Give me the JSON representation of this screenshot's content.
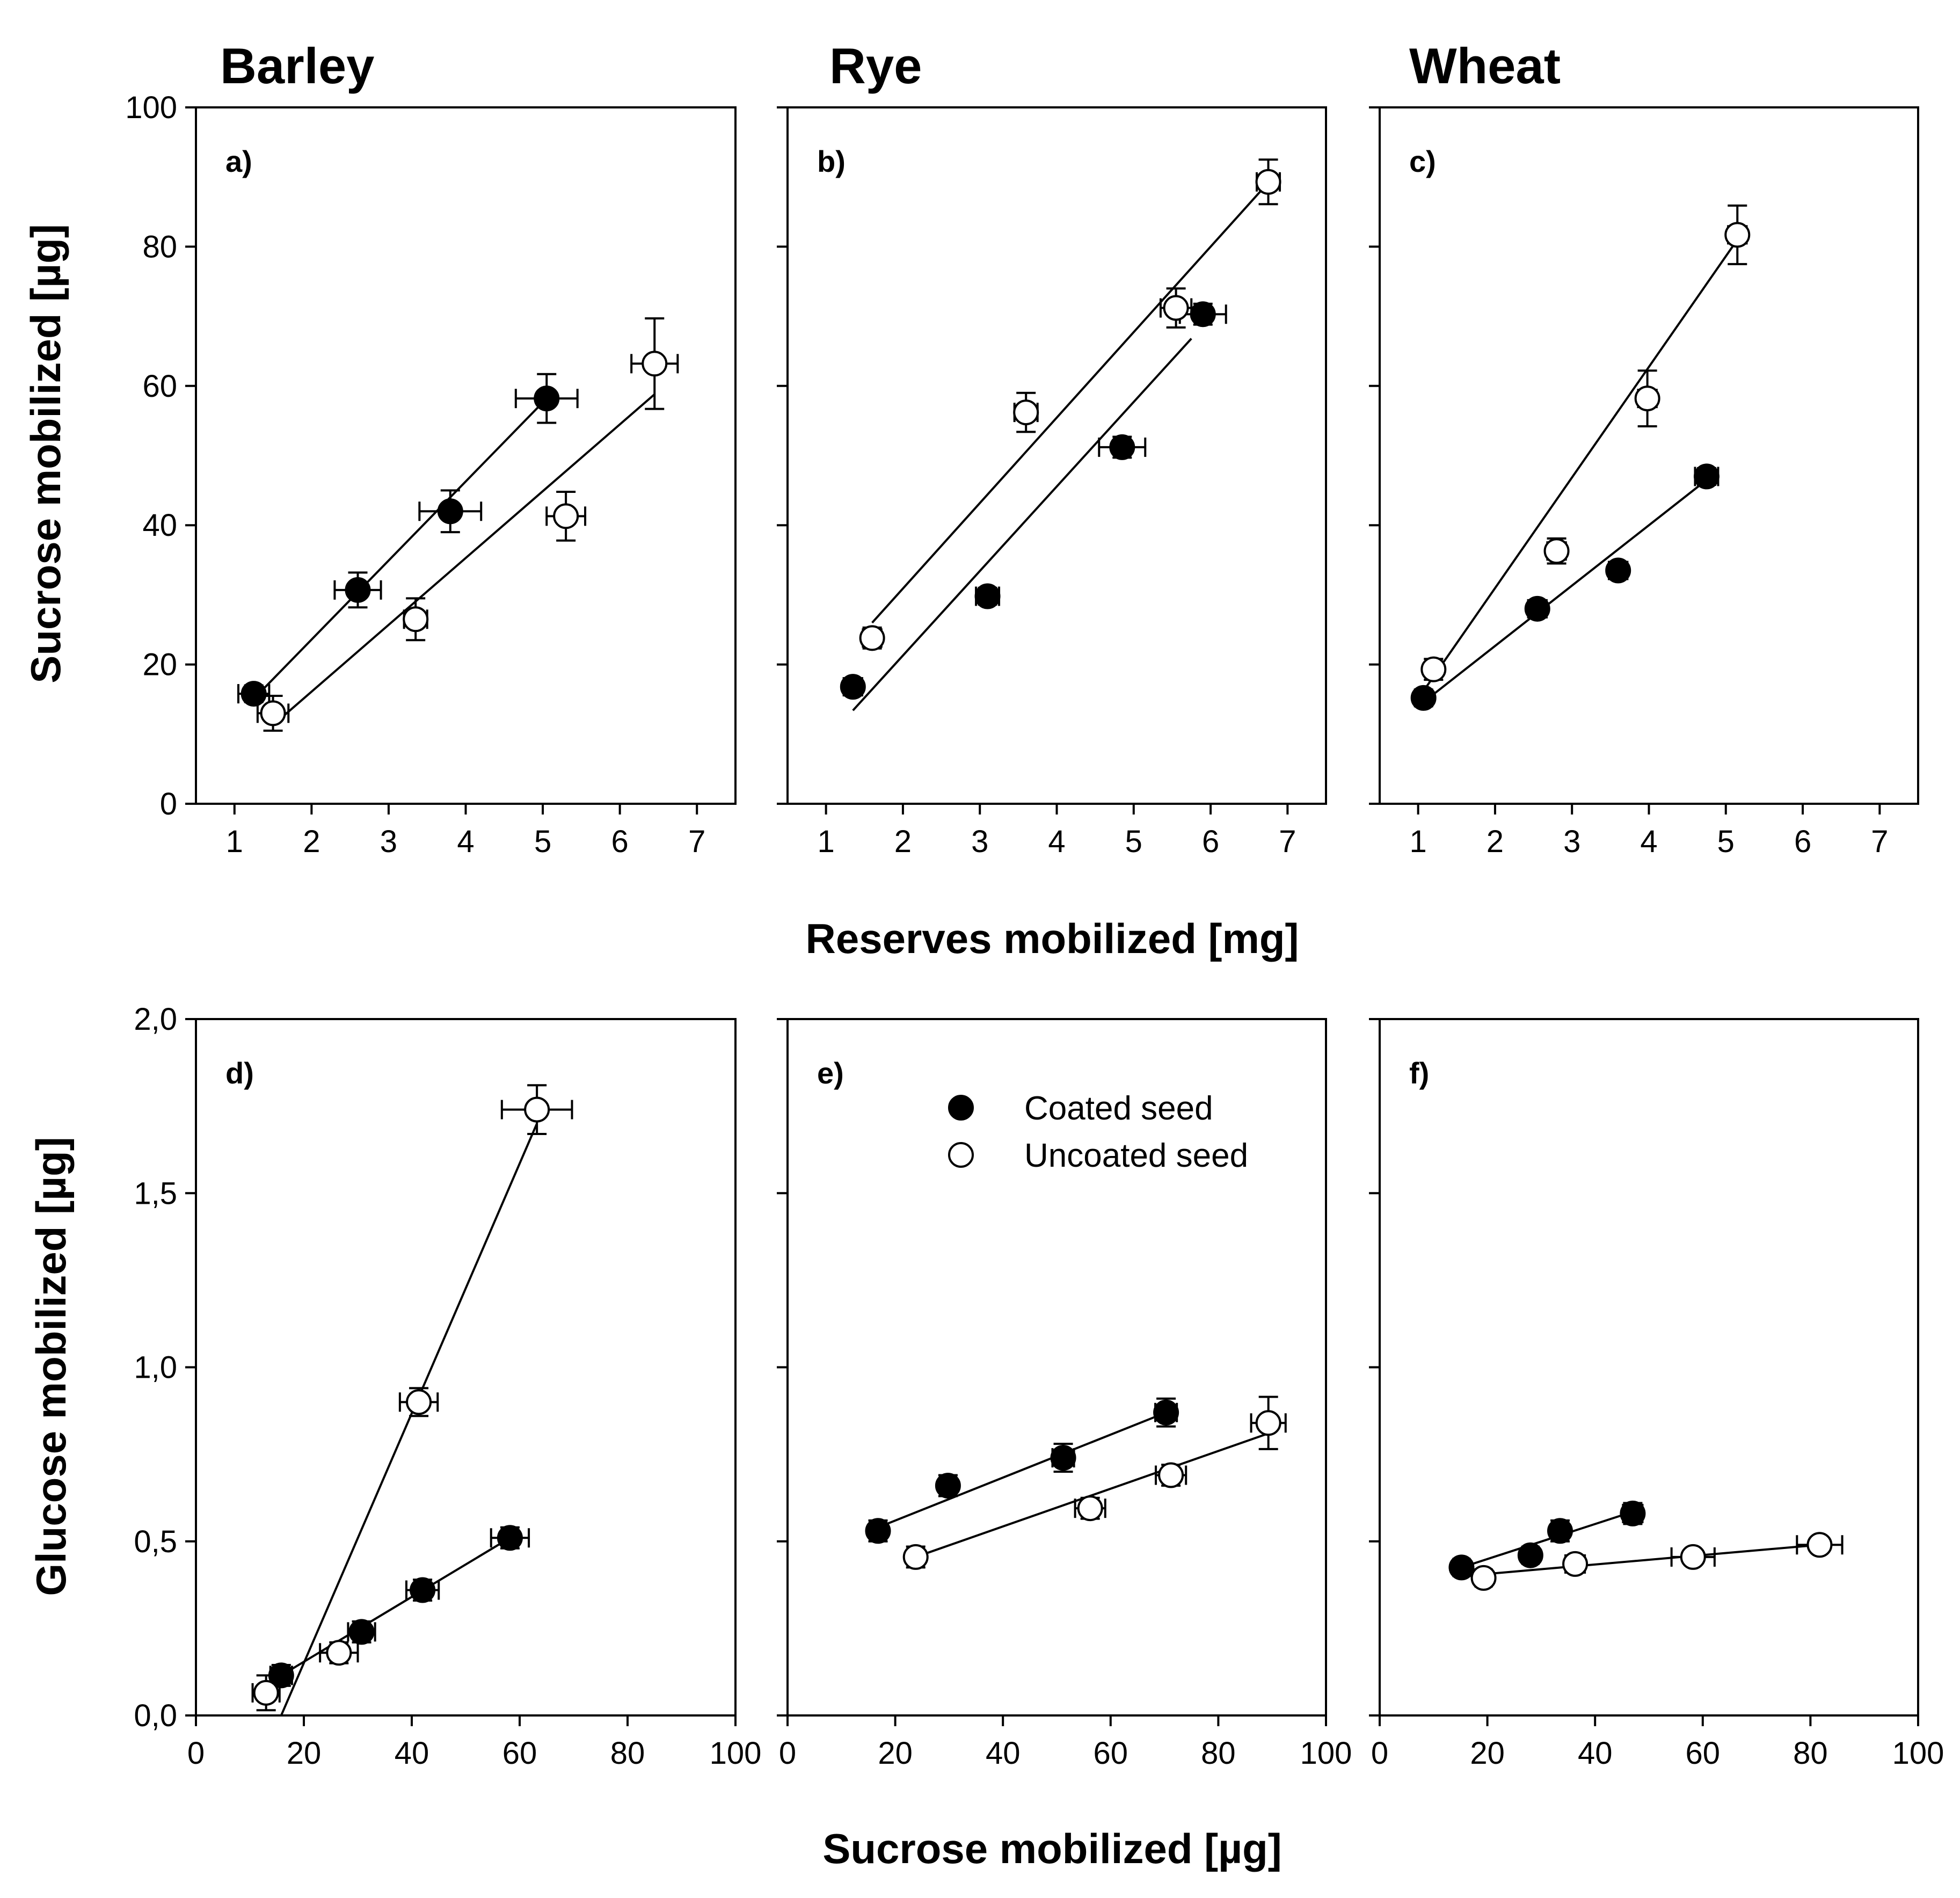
{
  "legend": {
    "coated": "Coated seed",
    "uncoated": "Uncoated seed"
  },
  "crops": [
    "Barley",
    "Rye",
    "Wheat"
  ],
  "xlabel_top": "Reserves mobilized [mg]",
  "xlabel_bottom": "Sucrose mobilized [µg]",
  "ylabel_top": "Sucrose mobilized [µg]",
  "ylabel_bottom": "Glucose mobilized [µg]",
  "chart_data": [
    {
      "type": "scatter",
      "panel": "a)",
      "crop": "Barley",
      "xlabel": "Reserves mobilized [mg]",
      "ylabel": "Sucrose mobilized [µg]",
      "xlim": [
        0.5,
        7.5
      ],
      "ylim": [
        0,
        100
      ],
      "xticks": [
        "1",
        "2",
        "3",
        "4",
        "5",
        "6",
        "7"
      ],
      "yticks": [
        "0",
        "20",
        "40",
        "60",
        "80",
        "100"
      ],
      "series": [
        {
          "name": "Coated seed",
          "filled": true,
          "points": [
            {
              "x": 1.25,
              "y": 15.8,
              "xerr": 0.2,
              "yerr": 1.2
            },
            {
              "x": 2.6,
              "y": 30.7,
              "xerr": 0.3,
              "yerr": 2.5
            },
            {
              "x": 3.8,
              "y": 42.0,
              "xerr": 0.4,
              "yerr": 3.0
            },
            {
              "x": 5.05,
              "y": 58.2,
              "xerr": 0.4,
              "yerr": 3.5
            }
          ],
          "fit": [
            [
              1.2,
              14.5
            ],
            [
              5.05,
              58.2
            ]
          ]
        },
        {
          "name": "Uncoated seed",
          "filled": false,
          "points": [
            {
              "x": 1.5,
              "y": 13.0,
              "xerr": 0.2,
              "yerr": 2.5
            },
            {
              "x": 3.35,
              "y": 26.5,
              "xerr": 0.15,
              "yerr": 3.0
            },
            {
              "x": 5.3,
              "y": 41.3,
              "xerr": 0.25,
              "yerr": 3.5
            },
            {
              "x": 6.45,
              "y": 63.2,
              "xerr": 0.3,
              "yerr": 6.5
            }
          ],
          "fit": [
            [
              1.5,
              11.3
            ],
            [
              6.45,
              58.8
            ]
          ]
        }
      ]
    },
    {
      "type": "scatter",
      "panel": "b)",
      "crop": "Rye",
      "xlabel": "Reserves mobilized [mg]",
      "ylabel": "Sucrose mobilized [µg]",
      "xlim": [
        0.5,
        7.5
      ],
      "ylim": [
        0,
        100
      ],
      "xticks": [
        "1",
        "2",
        "3",
        "4",
        "5",
        "6",
        "7"
      ],
      "yticks": [
        "",
        "",
        "",
        "",
        "",
        ""
      ],
      "series": [
        {
          "name": "Coated seed",
          "filled": true,
          "points": [
            {
              "x": 1.35,
              "y": 16.8,
              "xerr": 0.12,
              "yerr": 1.2
            },
            {
              "x": 3.1,
              "y": 29.8,
              "xerr": 0.15,
              "yerr": 1.2
            },
            {
              "x": 4.85,
              "y": 51.2,
              "xerr": 0.3,
              "yerr": 1.5
            },
            {
              "x": 5.9,
              "y": 70.3,
              "xerr": 0.3,
              "yerr": 1.5
            }
          ],
          "fit": [
            [
              1.35,
              13.4
            ],
            [
              5.75,
              66.8
            ]
          ]
        },
        {
          "name": "Uncoated seed",
          "filled": false,
          "points": [
            {
              "x": 1.6,
              "y": 23.8,
              "xerr": 0.12,
              "yerr": 1.5
            },
            {
              "x": 3.6,
              "y": 56.2,
              "xerr": 0.15,
              "yerr": 2.8
            },
            {
              "x": 5.55,
              "y": 71.2,
              "xerr": 0.2,
              "yerr": 2.8
            },
            {
              "x": 6.75,
              "y": 89.3,
              "xerr": 0.15,
              "yerr": 3.2
            }
          ],
          "fit": [
            [
              1.6,
              26.0
            ],
            [
              6.75,
              89.2
            ]
          ]
        }
      ]
    },
    {
      "type": "scatter",
      "panel": "c)",
      "crop": "Wheat",
      "xlabel": "Reserves mobilized [mg]",
      "ylabel": "Sucrose mobilized [µg]",
      "xlim": [
        0.5,
        7.5
      ],
      "ylim": [
        0,
        100
      ],
      "xticks": [
        "1",
        "2",
        "3",
        "4",
        "5",
        "6",
        "7"
      ],
      "yticks": [
        "",
        "",
        "",
        "",
        "",
        ""
      ],
      "series": [
        {
          "name": "Coated seed",
          "filled": true,
          "points": [
            {
              "x": 1.07,
              "y": 15.2,
              "xerr": 0.1,
              "yerr": 1.2
            },
            {
              "x": 2.55,
              "y": 28.0,
              "xerr": 0.12,
              "yerr": 1.2
            },
            {
              "x": 3.6,
              "y": 33.5,
              "xerr": 0.12,
              "yerr": 1.2
            },
            {
              "x": 4.75,
              "y": 47.0,
              "xerr": 0.15,
              "yerr": 1.2
            }
          ],
          "fit": [
            [
              1.07,
              14.6
            ],
            [
              4.75,
              46.5
            ]
          ]
        },
        {
          "name": "Uncoated seed",
          "filled": false,
          "points": [
            {
              "x": 1.2,
              "y": 19.3,
              "xerr": 0.1,
              "yerr": 1.5
            },
            {
              "x": 2.8,
              "y": 36.3,
              "xerr": 0.12,
              "yerr": 1.8
            },
            {
              "x": 3.98,
              "y": 58.2,
              "xerr": 0.12,
              "yerr": 4.0
            },
            {
              "x": 5.15,
              "y": 81.7,
              "xerr": 0.12,
              "yerr": 4.2
            }
          ],
          "fit": [
            [
              1.07,
              16.2
            ],
            [
              5.15,
              81.0
            ]
          ]
        }
      ]
    },
    {
      "type": "scatter",
      "panel": "d)",
      "crop": "Barley",
      "xlabel": "Sucrose mobilized [µg]",
      "ylabel": "Glucose mobilized [µg]",
      "xlim": [
        0,
        100
      ],
      "ylim": [
        0,
        2.0
      ],
      "xticks": [
        "0",
        "20",
        "40",
        "60",
        "80",
        "100"
      ],
      "yticks": [
        "0,0",
        "0,5",
        "1,0",
        "1,5",
        "2,0"
      ],
      "series": [
        {
          "name": "Coated seed",
          "filled": true,
          "points": [
            {
              "x": 15.8,
              "y": 0.115,
              "xerr": 2.0,
              "yerr": 0.03
            },
            {
              "x": 30.7,
              "y": 0.24,
              "xerr": 2.5,
              "yerr": 0.03
            },
            {
              "x": 42.0,
              "y": 0.36,
              "xerr": 3.0,
              "yerr": 0.03
            },
            {
              "x": 58.2,
              "y": 0.51,
              "xerr": 3.5,
              "yerr": 0.03
            }
          ],
          "fit": [
            [
              15.8,
              0.115
            ],
            [
              58.2,
              0.51
            ]
          ]
        },
        {
          "name": "Uncoated seed",
          "filled": false,
          "points": [
            {
              "x": 13.0,
              "y": 0.065,
              "xerr": 2.5,
              "yerr": 0.05
            },
            {
              "x": 26.5,
              "y": 0.18,
              "xerr": 3.5,
              "yerr": 0.03
            },
            {
              "x": 41.3,
              "y": 0.9,
              "xerr": 3.5,
              "yerr": 0.04
            },
            {
              "x": 63.2,
              "y": 1.74,
              "xerr": 6.5,
              "yerr": 0.07
            }
          ],
          "fit": [
            [
              15.8,
              0.0
            ],
            [
              63.2,
              1.7
            ]
          ]
        }
      ]
    },
    {
      "type": "scatter",
      "panel": "e)",
      "crop": "Rye",
      "xlabel": "Sucrose mobilized [µg]",
      "ylabel": "Glucose mobilized [µg]",
      "xlim": [
        0,
        100
      ],
      "ylim": [
        0,
        2.0
      ],
      "xticks": [
        "0",
        "20",
        "40",
        "60",
        "80",
        "100"
      ],
      "yticks": [
        "",
        "",
        "",
        "",
        ""
      ],
      "series": [
        {
          "name": "Coated seed",
          "filled": true,
          "points": [
            {
              "x": 16.8,
              "y": 0.53,
              "xerr": 1.5,
              "yerr": 0.03
            },
            {
              "x": 29.8,
              "y": 0.66,
              "xerr": 1.5,
              "yerr": 0.03
            },
            {
              "x": 51.2,
              "y": 0.74,
              "xerr": 2.0,
              "yerr": 0.04
            },
            {
              "x": 70.3,
              "y": 0.87,
              "xerr": 2.0,
              "yerr": 0.04
            }
          ],
          "fit": [
            [
              16.8,
              0.54
            ],
            [
              70.3,
              0.87
            ]
          ]
        },
        {
          "name": "Uncoated seed",
          "filled": false,
          "points": [
            {
              "x": 23.8,
              "y": 0.455,
              "xerr": 1.5,
              "yerr": 0.03
            },
            {
              "x": 56.2,
              "y": 0.595,
              "xerr": 2.8,
              "yerr": 0.03
            },
            {
              "x": 71.2,
              "y": 0.69,
              "xerr": 2.8,
              "yerr": 0.03
            },
            {
              "x": 89.3,
              "y": 0.84,
              "xerr": 3.2,
              "yerr": 0.075
            }
          ],
          "fit": [
            [
              23.8,
              0.455
            ],
            [
              89.3,
              0.81
            ]
          ]
        }
      ]
    },
    {
      "type": "scatter",
      "panel": "f)",
      "crop": "Wheat",
      "xlabel": "Sucrose mobilized [µg]",
      "ylabel": "Glucose mobilized [µg]",
      "xlim": [
        0,
        100
      ],
      "ylim": [
        0,
        2.0
      ],
      "xticks": [
        "0",
        "20",
        "40",
        "60",
        "80",
        "100"
      ],
      "yticks": [
        "",
        "",
        "",
        "",
        ""
      ],
      "series": [
        {
          "name": "Coated seed",
          "filled": true,
          "points": [
            {
              "x": 15.2,
              "y": 0.425,
              "xerr": 1.5,
              "yerr": 0.02
            },
            {
              "x": 28.0,
              "y": 0.46,
              "xerr": 1.5,
              "yerr": 0.02
            },
            {
              "x": 33.5,
              "y": 0.53,
              "xerr": 1.5,
              "yerr": 0.03
            },
            {
              "x": 47.0,
              "y": 0.58,
              "xerr": 1.8,
              "yerr": 0.03
            }
          ],
          "fit": [
            [
              15.2,
              0.425
            ],
            [
              47.0,
              0.585
            ]
          ]
        },
        {
          "name": "Uncoated seed",
          "filled": false,
          "points": [
            {
              "x": 19.3,
              "y": 0.395,
              "xerr": 1.5,
              "yerr": 0.02
            },
            {
              "x": 36.3,
              "y": 0.435,
              "xerr": 1.8,
              "yerr": 0.02
            },
            {
              "x": 58.2,
              "y": 0.455,
              "xerr": 4.0,
              "yerr": 0.02
            },
            {
              "x": 81.7,
              "y": 0.49,
              "xerr": 4.2,
              "yerr": 0.02
            }
          ],
          "fit": [
            [
              15.2,
              0.4
            ],
            [
              81.7,
              0.49
            ]
          ]
        }
      ]
    }
  ]
}
